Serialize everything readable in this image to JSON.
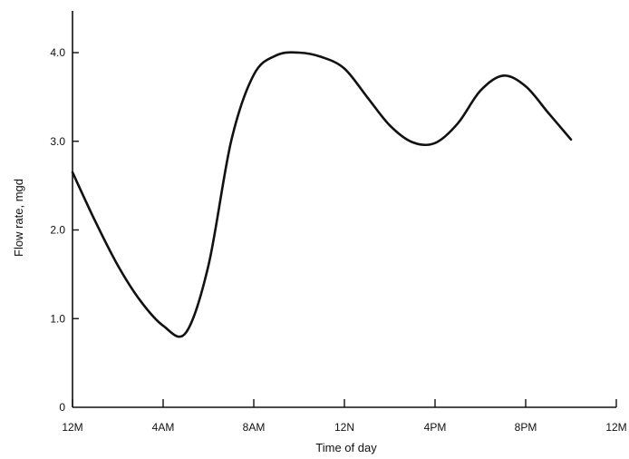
{
  "chart_data": {
    "type": "line",
    "title": "",
    "xlabel": "Time of day",
    "ylabel": "Flow rate, mgd",
    "xlim": [
      0,
      24
    ],
    "ylim": [
      0,
      4.4
    ],
    "x_ticks": [
      {
        "value": 0,
        "label": "12M"
      },
      {
        "value": 4,
        "label": "4AM"
      },
      {
        "value": 8,
        "label": "8AM"
      },
      {
        "value": 12,
        "label": "12N"
      },
      {
        "value": 16,
        "label": "4PM"
      },
      {
        "value": 20,
        "label": "8PM"
      },
      {
        "value": 24,
        "label": "12M"
      }
    ],
    "y_ticks": [
      {
        "value": 0,
        "label": "0"
      },
      {
        "value": 1,
        "label": "1.0"
      },
      {
        "value": 2,
        "label": "2.0"
      },
      {
        "value": 3,
        "label": "3.0"
      },
      {
        "value": 4,
        "label": "4.0"
      }
    ],
    "grid": false,
    "series": [
      {
        "color": "#111111",
        "points": [
          [
            0,
            2.65
          ],
          [
            1,
            2.1
          ],
          [
            2,
            1.6
          ],
          [
            3,
            1.2
          ],
          [
            4,
            0.92
          ],
          [
            5,
            0.84
          ],
          [
            6,
            1.6
          ],
          [
            7,
            3.0
          ],
          [
            8,
            3.75
          ],
          [
            9,
            3.97
          ],
          [
            10,
            4.0
          ],
          [
            11,
            3.95
          ],
          [
            12,
            3.82
          ],
          [
            13,
            3.5
          ],
          [
            14,
            3.18
          ],
          [
            15,
            2.99
          ],
          [
            16,
            2.98
          ],
          [
            17,
            3.2
          ],
          [
            18,
            3.57
          ],
          [
            19,
            3.74
          ],
          [
            20,
            3.62
          ],
          [
            21,
            3.32
          ],
          [
            22,
            3.02
          ]
        ]
      }
    ]
  }
}
